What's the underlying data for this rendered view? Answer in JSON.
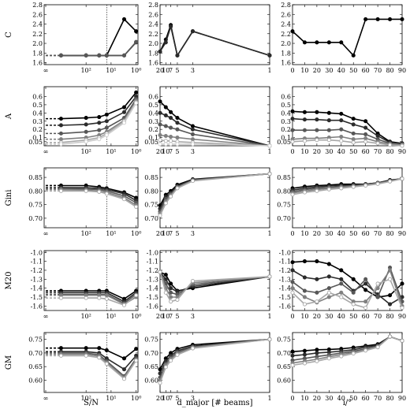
{
  "figure": {
    "row_labels": [
      "C",
      "A",
      "Gini",
      "M20",
      "GM"
    ],
    "col_xlabels": [
      "S/N",
      "d_major [# beams]",
      "i/°"
    ],
    "col_xticks": [
      [
        "∞",
        "10²",
        "10¹",
        "10⁰"
      ],
      [
        "20",
        "10",
        "7",
        "5",
        "3",
        "1"
      ],
      [
        "0",
        "10",
        "20",
        "30",
        "40",
        "50",
        "60",
        "70",
        "80",
        "90"
      ]
    ],
    "row_yticks": [
      [
        1.6,
        1.8,
        2.0,
        2.2,
        2.4,
        2.6,
        2.8
      ],
      [
        0.05,
        0.1,
        0.2,
        0.3,
        0.4,
        0.5,
        0.6
      ],
      [
        0.7,
        0.75,
        0.8,
        0.85
      ],
      [
        -1.6,
        -1.5,
        -1.4,
        -1.3,
        -1.2,
        -1.1,
        -1.0
      ],
      [
        0.6,
        0.65,
        0.7,
        0.75
      ]
    ],
    "row_ylims": [
      [
        1.56,
        2.8
      ],
      [
        0.0,
        0.72
      ],
      [
        0.665,
        0.885
      ],
      [
        -1.65,
        -0.98
      ],
      [
        0.555,
        0.775
      ]
    ],
    "series_colors": [
      "#000000",
      "#2b2b2b",
      "#575757",
      "#808080",
      "#a8a8a8",
      "#cccccc"
    ]
  },
  "chart_data": [
    {
      "type": "line",
      "row": "C",
      "col": "S/N",
      "xscale": "log-reversed",
      "x": [
        "∞",
        1000,
        100,
        30,
        15,
        3,
        1
      ],
      "note_line_x": 15,
      "series": [
        {
          "values": [
            1.75,
            1.75,
            1.75,
            1.75,
            1.75,
            2.5,
            2.25
          ]
        },
        {
          "values": [
            1.75,
            1.75,
            1.75,
            1.75,
            1.75,
            1.75,
            2.02
          ]
        },
        {
          "values": [
            1.75,
            1.75,
            1.75,
            1.75,
            1.75,
            1.75,
            2.03
          ]
        }
      ]
    },
    {
      "type": "line",
      "row": "C",
      "col": "d_major",
      "x": [
        20,
        10,
        7,
        5,
        3,
        1
      ],
      "series": [
        {
          "values": [
            1.83,
            2.08,
            2.38,
            1.75,
            2.25,
            1.75
          ]
        },
        {
          "values": [
            1.83,
            2.02,
            2.35,
            1.75,
            2.25,
            1.75
          ]
        }
      ]
    },
    {
      "type": "line",
      "row": "C",
      "col": "i",
      "x": [
        0,
        10,
        20,
        30,
        40,
        50,
        60,
        70,
        80,
        90
      ],
      "series": [
        {
          "values": [
            2.25,
            2.02,
            2.02,
            2.02,
            2.02,
            1.75,
            2.5,
            2.5,
            2.5,
            2.5
          ]
        }
      ]
    },
    {
      "type": "line",
      "row": "A",
      "col": "S/N",
      "x": [
        "∞",
        1000,
        100,
        30,
        15,
        3,
        1
      ],
      "series": [
        {
          "values": [
            0.33,
            0.33,
            0.34,
            0.35,
            0.38,
            0.47,
            0.65
          ]
        },
        {
          "values": [
            0.25,
            0.25,
            0.26,
            0.28,
            0.3,
            0.41,
            0.6
          ]
        },
        {
          "values": [
            0.15,
            0.15,
            0.17,
            0.19,
            0.22,
            0.34,
            0.57
          ]
        },
        {
          "values": [
            0.08,
            0.08,
            0.1,
            0.13,
            0.17,
            0.31,
            0.55
          ]
        },
        {
          "values": [
            0.04,
            0.04,
            0.07,
            0.1,
            0.15,
            0.3,
            0.53
          ]
        },
        {
          "values": [
            0.02,
            0.02,
            0.05,
            0.08,
            0.13,
            0.28,
            0.52
          ]
        }
      ]
    },
    {
      "type": "line",
      "row": "A",
      "col": "d_major",
      "x": [
        20,
        10,
        7,
        5,
        3,
        1
      ],
      "series": [
        {
          "values": [
            0.54,
            0.47,
            0.41,
            0.34,
            0.24,
            0.0
          ]
        },
        {
          "values": [
            0.4,
            0.37,
            0.34,
            0.28,
            0.2,
            0.0
          ]
        },
        {
          "values": [
            0.26,
            0.24,
            0.22,
            0.2,
            0.14,
            0.0
          ]
        },
        {
          "values": [
            0.13,
            0.12,
            0.11,
            0.1,
            0.08,
            0.0
          ]
        },
        {
          "values": [
            0.07,
            0.06,
            0.06,
            0.05,
            0.04,
            0.0
          ]
        },
        {
          "values": [
            0.02,
            0.02,
            0.02,
            0.02,
            0.02,
            0.0
          ]
        }
      ]
    },
    {
      "type": "line",
      "row": "A",
      "col": "i",
      "x": [
        0,
        10,
        20,
        30,
        40,
        50,
        60,
        70,
        80,
        90
      ],
      "series": [
        {
          "values": [
            0.42,
            0.41,
            0.41,
            0.4,
            0.39,
            0.33,
            0.3,
            0.15,
            0.05,
            0.03
          ]
        },
        {
          "values": [
            0.33,
            0.32,
            0.32,
            0.31,
            0.31,
            0.26,
            0.22,
            0.12,
            0.04,
            0.02
          ]
        },
        {
          "values": [
            0.19,
            0.19,
            0.19,
            0.19,
            0.2,
            0.15,
            0.14,
            0.08,
            0.03,
            0.02
          ]
        },
        {
          "values": [
            0.08,
            0.09,
            0.09,
            0.1,
            0.11,
            0.08,
            0.09,
            0.05,
            0.02,
            0.01
          ]
        },
        {
          "values": [
            0.05,
            0.06,
            0.07,
            0.07,
            0.06,
            0.04,
            0.05,
            0.03,
            0.01,
            0.0
          ]
        }
      ]
    },
    {
      "type": "line",
      "row": "Gini",
      "col": "S/N",
      "x": [
        "∞",
        1000,
        100,
        30,
        15,
        3,
        1
      ],
      "series": [
        {
          "values": [
            0.82,
            0.82,
            0.82,
            0.815,
            0.81,
            0.795,
            0.775
          ]
        },
        {
          "values": [
            0.813,
            0.813,
            0.812,
            0.81,
            0.805,
            0.79,
            0.765
          ]
        },
        {
          "values": [
            0.808,
            0.808,
            0.807,
            0.805,
            0.8,
            0.782,
            0.757
          ]
        },
        {
          "values": [
            0.805,
            0.805,
            0.803,
            0.8,
            0.795,
            0.775,
            0.748
          ]
        },
        {
          "values": [
            0.8,
            0.8,
            0.8,
            0.797,
            0.79,
            0.77,
            0.742
          ]
        }
      ]
    },
    {
      "type": "line",
      "row": "Gini",
      "col": "d_major",
      "x": [
        20,
        10,
        7,
        5,
        3,
        1
      ],
      "series": [
        {
          "values": [
            0.747,
            0.786,
            0.8,
            0.823,
            0.843,
            0.863
          ]
        },
        {
          "values": [
            0.735,
            0.778,
            0.793,
            0.818,
            0.841,
            0.863
          ]
        },
        {
          "values": [
            0.725,
            0.77,
            0.788,
            0.815,
            0.84,
            0.863
          ]
        },
        {
          "values": [
            0.718,
            0.762,
            0.784,
            0.812,
            0.838,
            0.863
          ]
        },
        {
          "values": [
            0.71,
            0.755,
            0.78,
            0.81,
            0.837,
            0.863
          ]
        }
      ]
    },
    {
      "type": "line",
      "row": "Gini",
      "col": "i",
      "x": [
        0,
        10,
        20,
        30,
        40,
        50,
        60,
        70,
        80,
        90
      ],
      "series": [
        {
          "values": [
            0.81,
            0.816,
            0.82,
            0.822,
            0.825,
            0.825,
            0.825,
            0.83,
            0.84,
            0.845
          ]
        },
        {
          "values": [
            0.803,
            0.81,
            0.815,
            0.818,
            0.82,
            0.822,
            0.825,
            0.83,
            0.838,
            0.845
          ]
        },
        {
          "values": [
            0.797,
            0.805,
            0.81,
            0.813,
            0.816,
            0.82,
            0.823,
            0.828,
            0.837,
            0.845
          ]
        },
        {
          "values": [
            0.792,
            0.8,
            0.805,
            0.81,
            0.814,
            0.817,
            0.822,
            0.828,
            0.836,
            0.845
          ]
        },
        {
          "values": [
            0.787,
            0.795,
            0.8,
            0.806,
            0.81,
            0.815,
            0.82,
            0.826,
            0.835,
            0.845
          ]
        }
      ]
    },
    {
      "type": "line",
      "row": "M20",
      "col": "S/N",
      "x": [
        "∞",
        1000,
        100,
        30,
        15,
        3,
        1
      ],
      "series": [
        {
          "values": [
            -1.43,
            -1.43,
            -1.43,
            -1.43,
            -1.43,
            -1.52,
            -1.43
          ]
        },
        {
          "values": [
            -1.45,
            -1.45,
            -1.45,
            -1.45,
            -1.45,
            -1.55,
            -1.45
          ]
        },
        {
          "values": [
            -1.47,
            -1.47,
            -1.47,
            -1.47,
            -1.47,
            -1.57,
            -1.47
          ]
        },
        {
          "values": [
            -1.48,
            -1.48,
            -1.48,
            -1.48,
            -1.48,
            -1.58,
            -1.5
          ]
        },
        {
          "values": [
            -1.51,
            -1.51,
            -1.51,
            -1.51,
            -1.52,
            -1.59,
            -1.48
          ]
        }
      ]
    },
    {
      "type": "line",
      "row": "M20",
      "col": "d_major",
      "x": [
        20,
        10,
        7,
        5,
        3,
        1
      ],
      "series": [
        {
          "values": [
            -1.22,
            -1.25,
            -1.35,
            -1.43,
            -1.4,
            -1.27
          ]
        },
        {
          "values": [
            -1.22,
            -1.3,
            -1.4,
            -1.44,
            -1.38,
            -1.27
          ]
        },
        {
          "values": [
            -1.22,
            -1.35,
            -1.45,
            -1.47,
            -1.36,
            -1.27
          ]
        },
        {
          "values": [
            -1.22,
            -1.4,
            -1.5,
            -1.5,
            -1.34,
            -1.27
          ]
        },
        {
          "values": [
            -1.22,
            -1.45,
            -1.55,
            -1.53,
            -1.32,
            -1.27
          ]
        }
      ]
    },
    {
      "type": "line",
      "row": "M20",
      "col": "i",
      "x": [
        0,
        10,
        20,
        30,
        40,
        50,
        60,
        70,
        80,
        90
      ],
      "series": [
        {
          "values": [
            -1.11,
            -1.1,
            -1.1,
            -1.13,
            -1.2,
            -1.3,
            -1.42,
            -1.5,
            -1.48,
            -1.35
          ]
        },
        {
          "values": [
            -1.2,
            -1.28,
            -1.3,
            -1.27,
            -1.3,
            -1.43,
            -1.35,
            -1.47,
            -1.58,
            -1.5
          ]
        },
        {
          "values": [
            -1.33,
            -1.43,
            -1.45,
            -1.4,
            -1.35,
            -1.45,
            -1.3,
            -1.5,
            -1.17,
            -1.55
          ]
        },
        {
          "values": [
            -1.4,
            -1.5,
            -1.56,
            -1.5,
            -1.45,
            -1.55,
            -1.55,
            -1.4,
            -1.2,
            -1.6
          ]
        },
        {
          "values": [
            -1.45,
            -1.58,
            -1.55,
            -1.45,
            -1.5,
            -1.58,
            -1.62,
            -1.35,
            -1.3,
            -1.62
          ]
        }
      ]
    },
    {
      "type": "line",
      "row": "GM",
      "col": "S/N",
      "x": [
        "∞",
        1000,
        100,
        30,
        15,
        3,
        1
      ],
      "series": [
        {
          "values": [
            0.718,
            0.718,
            0.718,
            0.718,
            0.71,
            0.68,
            0.715
          ]
        },
        {
          "values": [
            0.705,
            0.705,
            0.705,
            0.7,
            0.68,
            0.64,
            0.69
          ]
        },
        {
          "values": [
            0.7,
            0.7,
            0.7,
            0.693,
            0.67,
            0.615,
            0.68
          ]
        },
        {
          "values": [
            0.695,
            0.695,
            0.695,
            0.688,
            0.665,
            0.61,
            0.675
          ]
        },
        {
          "values": [
            0.69,
            0.69,
            0.69,
            0.683,
            0.66,
            0.605,
            0.672
          ]
        }
      ]
    },
    {
      "type": "line",
      "row": "GM",
      "col": "d_major",
      "x": [
        20,
        10,
        7,
        5,
        3,
        1
      ],
      "series": [
        {
          "values": [
            0.64,
            0.68,
            0.7,
            0.715,
            0.73,
            0.75
          ]
        },
        {
          "values": [
            0.625,
            0.67,
            0.69,
            0.708,
            0.725,
            0.75
          ]
        },
        {
          "values": [
            0.61,
            0.66,
            0.683,
            0.703,
            0.722,
            0.75
          ]
        },
        {
          "values": [
            0.6,
            0.655,
            0.678,
            0.698,
            0.72,
            0.75
          ]
        },
        {
          "values": [
            0.59,
            0.648,
            0.672,
            0.693,
            0.717,
            0.75
          ]
        }
      ]
    },
    {
      "type": "line",
      "row": "GM",
      "col": "i",
      "x": [
        0,
        10,
        20,
        30,
        40,
        50,
        60,
        70,
        80,
        90
      ],
      "series": [
        {
          "values": [
            0.705,
            0.708,
            0.712,
            0.713,
            0.715,
            0.72,
            0.726,
            0.732,
            0.76,
            0.745
          ]
        },
        {
          "values": [
            0.69,
            0.694,
            0.7,
            0.703,
            0.707,
            0.712,
            0.722,
            0.728,
            0.76,
            0.745
          ]
        },
        {
          "values": [
            0.673,
            0.68,
            0.687,
            0.693,
            0.7,
            0.706,
            0.716,
            0.725,
            0.76,
            0.745
          ]
        },
        {
          "values": [
            0.663,
            0.67,
            0.677,
            0.686,
            0.694,
            0.702,
            0.712,
            0.723,
            0.76,
            0.745
          ]
        },
        {
          "values": [
            0.655,
            0.662,
            0.67,
            0.68,
            0.688,
            0.698,
            0.709,
            0.721,
            0.76,
            0.745
          ]
        }
      ]
    }
  ]
}
